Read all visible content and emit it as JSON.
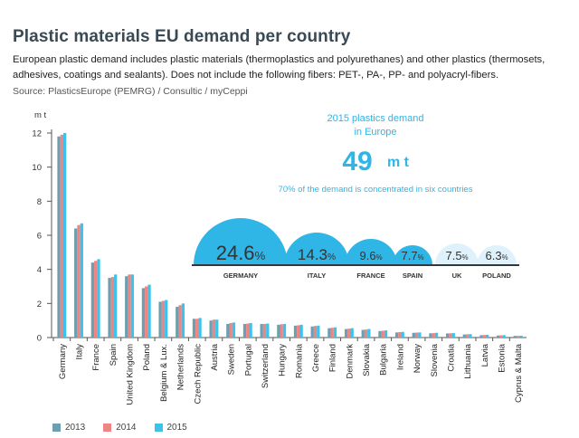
{
  "title": "Plastic materials EU demand per country",
  "subtitle": "European plastic demand includes plastic materials (thermoplastics and polyurethanes) and other plastics (thermosets, adhesives, coatings and sealants). Does not include the following fibers: PET-, PA-, PP- and polyacryl-fibers.",
  "source": "Source: PlasticsEurope (PEMRG) / Consultic / myCeppi",
  "colors": {
    "2013": "#6e9fb0",
    "2014": "#ee8583",
    "2015": "#3dc3eb",
    "dome_dark": "#2fb5e6",
    "dome_light": "#dff2fb",
    "highlight_text": "#2fb5e6"
  },
  "callout": {
    "line1": "2015 plastics demand",
    "line2": "in Europe",
    "value": "49",
    "unit": "m t",
    "note": "70% of the demand is concentrated in six countries"
  },
  "share": [
    {
      "country": "GERMANY",
      "value": "24.6",
      "pct": "%"
    },
    {
      "country": "ITALY",
      "value": "14.3",
      "pct": "%"
    },
    {
      "country": "FRANCE",
      "value": "9.6",
      "pct": "%"
    },
    {
      "country": "SPAIN",
      "value": "7.7",
      "pct": "%"
    },
    {
      "country": "UK",
      "value": "7.5",
      "pct": "%"
    },
    {
      "country": "POLAND",
      "value": "6.3",
      "pct": "%"
    }
  ],
  "chart_data": {
    "type": "bar",
    "ylabel": "m t",
    "ylim": [
      0,
      12
    ],
    "yticks": [
      0,
      2,
      4,
      6,
      8,
      10,
      12
    ],
    "grid": false,
    "legend_position": "bottom-left",
    "categories": [
      "Germany",
      "Italy",
      "France",
      "Spain",
      "United Kingdom",
      "Poland",
      "Belgium & Lux.",
      "Netherlands",
      "Czech Republic",
      "Austria",
      "Sweden",
      "Portugal",
      "Switzerland",
      "Hungary",
      "Romania",
      "Greece",
      "Finland",
      "Denmark",
      "Slovakia",
      "Bulgaria",
      "Ireland",
      "Norway",
      "Slovenia",
      "Croatia",
      "Lithuania",
      "Latvia",
      "Estonia",
      "Cyprus & Malta"
    ],
    "series": [
      {
        "name": "2013",
        "values": [
          11.8,
          6.4,
          4.4,
          3.5,
          3.6,
          2.9,
          2.1,
          1.8,
          1.1,
          1.0,
          0.8,
          0.8,
          0.8,
          0.75,
          0.7,
          0.65,
          0.55,
          0.5,
          0.45,
          0.38,
          0.3,
          0.28,
          0.25,
          0.24,
          0.18,
          0.14,
          0.12,
          0.1
        ]
      },
      {
        "name": "2014",
        "values": [
          11.9,
          6.6,
          4.5,
          3.55,
          3.7,
          3.0,
          2.15,
          1.9,
          1.1,
          1.05,
          0.85,
          0.82,
          0.8,
          0.78,
          0.72,
          0.68,
          0.57,
          0.52,
          0.47,
          0.4,
          0.32,
          0.29,
          0.26,
          0.25,
          0.19,
          0.15,
          0.13,
          0.1
        ]
      },
      {
        "name": "2015",
        "values": [
          12.0,
          6.7,
          4.6,
          3.7,
          3.7,
          3.1,
          2.2,
          2.0,
          1.15,
          1.05,
          0.88,
          0.85,
          0.82,
          0.8,
          0.75,
          0.7,
          0.6,
          0.55,
          0.5,
          0.42,
          0.33,
          0.3,
          0.28,
          0.26,
          0.2,
          0.16,
          0.14,
          0.11
        ]
      }
    ]
  }
}
